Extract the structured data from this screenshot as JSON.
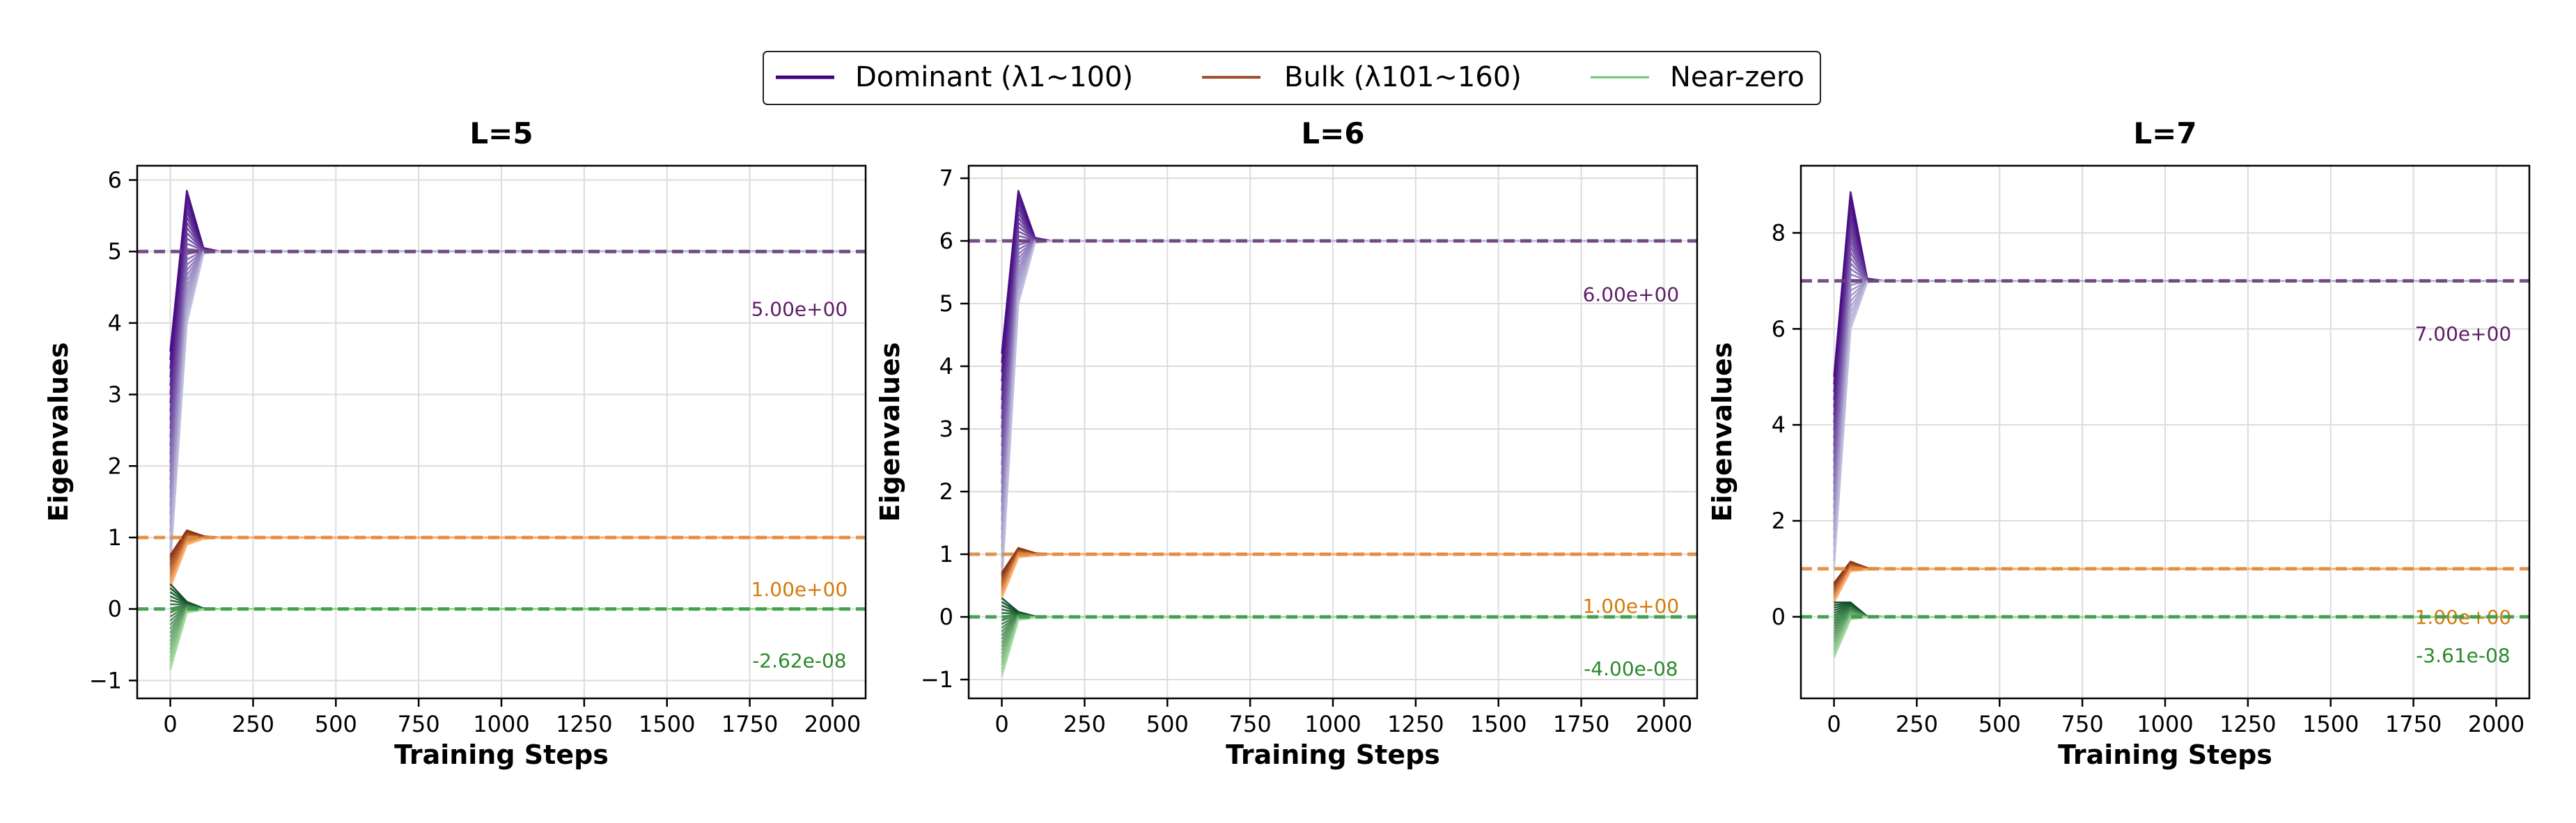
{
  "legend": {
    "placement": "top-center",
    "items": [
      {
        "key": "dominant",
        "label": "Dominant (λ1~100)",
        "color": "#3f007d"
      },
      {
        "key": "bulk",
        "label": "Bulk (λ101~160)",
        "color": "#a0522d"
      },
      {
        "key": "nearzero",
        "label": "Near-zero",
        "color": "#74c476"
      }
    ]
  },
  "colors": {
    "dominant_dark": "#3f007d",
    "dominant_light": "#bcbddc",
    "dominant_ref": "#6a3d7a",
    "bulk_dark": "#7f2704",
    "bulk_light": "#fdae6b",
    "bulk_ref": "#e08a3c",
    "nearzero_dark": "#00441b",
    "nearzero_light": "#a1d99b",
    "nearzero_ref": "#3a9a48",
    "dominant_text": "#5e1e66",
    "bulk_text": "#d47a0c",
    "nearzero_text": "#2a8a2a"
  },
  "chart_data": [
    {
      "type": "line",
      "title": "L=5",
      "xlabel": "Training Steps",
      "ylabel": "Eigenvalues",
      "xlim": [
        -100,
        2100
      ],
      "ylim": [
        -1.25,
        6.2
      ],
      "xticks": [
        0,
        250,
        500,
        750,
        1000,
        1250,
        1500,
        1750,
        2000
      ],
      "yticks": [
        -1,
        0,
        1,
        2,
        3,
        4,
        5,
        6
      ],
      "grid": true,
      "series": [
        {
          "group": "dominant",
          "x": [
            0,
            50,
            100,
            150
          ],
          "start_range": [
            0.6,
            3.6
          ],
          "peak_range": [
            4.0,
            5.85
          ],
          "settle_range": [
            4.97,
            5.05
          ],
          "final": 5.0
        },
        {
          "group": "bulk",
          "x": [
            0,
            50,
            100,
            150
          ],
          "start_range": [
            0.3,
            0.75
          ],
          "peak_range": [
            0.9,
            1.1
          ],
          "settle_range": [
            0.98,
            1.02
          ],
          "final": 1.0
        },
        {
          "group": "nearzero",
          "x": [
            0,
            50,
            100,
            150
          ],
          "start_range": [
            -0.85,
            0.35
          ],
          "peak_range": [
            -0.05,
            0.1
          ],
          "settle_range": [
            -0.01,
            0.01
          ],
          "final": 0.0
        }
      ],
      "reference_lines": [
        {
          "group": "dominant",
          "y": 5.0,
          "label": "5.00e+00"
        },
        {
          "group": "bulk",
          "y": 1.0,
          "label": "1.00e+00"
        },
        {
          "group": "nearzero",
          "y": 0.0,
          "label": "-2.62e-08"
        }
      ],
      "annotation_y": [
        4.2,
        0.28,
        -0.72
      ]
    },
    {
      "type": "line",
      "title": "L=6",
      "xlabel": "Training Steps",
      "ylabel": "Eigenvalues",
      "xlim": [
        -100,
        2100
      ],
      "ylim": [
        -1.3,
        7.2
      ],
      "xticks": [
        0,
        250,
        500,
        750,
        1000,
        1250,
        1500,
        1750,
        2000
      ],
      "yticks": [
        -1,
        0,
        1,
        2,
        3,
        4,
        5,
        6,
        7
      ],
      "grid": true,
      "series": [
        {
          "group": "dominant",
          "x": [
            0,
            50,
            100,
            150
          ],
          "start_range": [
            0.5,
            4.2
          ],
          "peak_range": [
            5.0,
            6.8
          ],
          "settle_range": [
            5.97,
            6.05
          ],
          "final": 6.0
        },
        {
          "group": "bulk",
          "x": [
            0,
            50,
            100,
            150
          ],
          "start_range": [
            0.3,
            0.7
          ],
          "peak_range": [
            0.95,
            1.1
          ],
          "settle_range": [
            0.98,
            1.02
          ],
          "final": 1.0
        },
        {
          "group": "nearzero",
          "x": [
            0,
            50,
            100,
            150
          ],
          "start_range": [
            -0.95,
            0.3
          ],
          "peak_range": [
            -0.05,
            0.08
          ],
          "settle_range": [
            -0.01,
            0.01
          ],
          "final": 0.0
        }
      ],
      "reference_lines": [
        {
          "group": "dominant",
          "y": 6.0,
          "label": "6.00e+00"
        },
        {
          "group": "bulk",
          "y": 1.0,
          "label": "1.00e+00"
        },
        {
          "group": "nearzero",
          "y": 0.0,
          "label": "-4.00e-08"
        }
      ],
      "annotation_y": [
        5.15,
        0.18,
        -0.82
      ]
    },
    {
      "type": "line",
      "title": "L=7",
      "xlabel": "Training Steps",
      "ylabel": "Eigenvalues",
      "xlim": [
        -100,
        2100
      ],
      "ylim": [
        -1.7,
        9.4
      ],
      "xticks": [
        0,
        250,
        500,
        750,
        1000,
        1250,
        1500,
        1750,
        2000
      ],
      "yticks": [
        0,
        2,
        4,
        6,
        8
      ],
      "grid": true,
      "series": [
        {
          "group": "dominant",
          "x": [
            0,
            50,
            100,
            150
          ],
          "start_range": [
            1.0,
            5.0
          ],
          "peak_range": [
            6.0,
            8.85
          ],
          "settle_range": [
            6.97,
            7.05
          ],
          "final": 7.0
        },
        {
          "group": "bulk",
          "x": [
            0,
            50,
            100,
            150
          ],
          "start_range": [
            0.3,
            0.7
          ],
          "peak_range": [
            0.95,
            1.15
          ],
          "settle_range": [
            0.98,
            1.02
          ],
          "final": 1.0
        },
        {
          "group": "nearzero",
          "x": [
            0,
            50,
            100,
            150
          ],
          "start_range": [
            -0.85,
            0.3
          ],
          "peak_range": [
            -0.05,
            0.3
          ],
          "settle_range": [
            -0.01,
            0.01
          ],
          "final": 0.0
        }
      ],
      "reference_lines": [
        {
          "group": "dominant",
          "y": 7.0,
          "label": "7.00e+00"
        },
        {
          "group": "bulk",
          "y": 1.0,
          "label": "1.00e+00"
        },
        {
          "group": "nearzero",
          "y": 0.0,
          "label": "-3.61e-08"
        }
      ],
      "annotation_y": [
        5.9,
        0.0,
        -0.8
      ]
    }
  ]
}
